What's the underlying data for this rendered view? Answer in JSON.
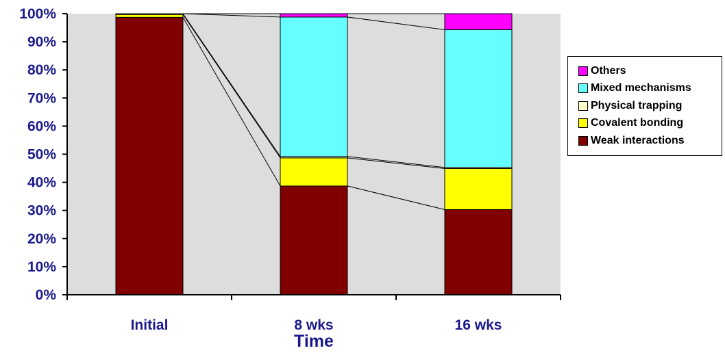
{
  "chart_data": {
    "type": "bar",
    "stacked": true,
    "percent": true,
    "categories": [
      "Initial",
      "8 wks",
      "16 wks"
    ],
    "series": [
      {
        "name": "Weak interactions",
        "color": "#800000",
        "values": [
          98.7,
          38.7,
          30.3
        ]
      },
      {
        "name": "Covalent bonding",
        "color": "#FFFF00",
        "values": [
          1.0,
          10.0,
          14.6
        ]
      },
      {
        "name": "Physical trapping",
        "color": "#FFFFCC",
        "values": [
          0.3,
          0.5,
          0.4
        ]
      },
      {
        "name": "Mixed mechanisms",
        "color": "#66FFFF",
        "values": [
          0.0,
          49.6,
          49.0
        ]
      },
      {
        "name": "Others",
        "color": "#FF00FF",
        "values": [
          0.0,
          1.2,
          5.7
        ]
      }
    ],
    "yticks": [
      "0%",
      "10%",
      "20%",
      "30%",
      "40%",
      "50%",
      "60%",
      "70%",
      "80%",
      "90%",
      "100%"
    ],
    "ylim": [
      0,
      100
    ],
    "xlabel": "Time",
    "ylabel": "",
    "title": "",
    "legend_position": "right",
    "legend_order": [
      "Others",
      "Mixed mechanisms",
      "Physical trapping",
      "Covalent bonding",
      "Weak interactions"
    ],
    "plot_background": "#DDDDDD",
    "connector_lines": true
  }
}
